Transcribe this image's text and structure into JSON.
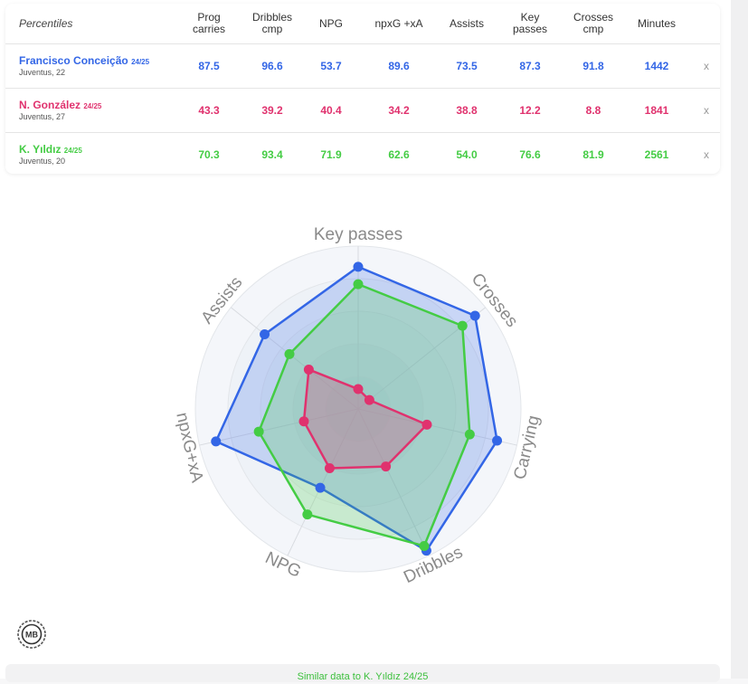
{
  "table": {
    "header_label": "Percentiles",
    "columns": [
      {
        "line1": "Prog",
        "line2": "carries"
      },
      {
        "line1": "Dribbles",
        "line2": "cmp"
      },
      {
        "line1": "NPG",
        "line2": ""
      },
      {
        "line1": "npxG +xA",
        "line2": ""
      },
      {
        "line1": "Assists",
        "line2": ""
      },
      {
        "line1": "Key",
        "line2": "passes"
      },
      {
        "line1": "Crosses",
        "line2": "cmp"
      },
      {
        "line1": "Minutes",
        "line2": ""
      }
    ],
    "remove_label": "x"
  },
  "players": [
    {
      "name": "Francisco Conceição",
      "season": "24/25",
      "club": "Juventus, 22",
      "color": "#3366e6",
      "values": [
        "87.5",
        "96.6",
        "53.7",
        "89.6",
        "73.5",
        "87.3",
        "91.8",
        "1442"
      ]
    },
    {
      "name": "N. González",
      "season": "24/25",
      "club": "Juventus, 27",
      "color": "#e0326e",
      "values": [
        "43.3",
        "39.2",
        "40.4",
        "34.2",
        "38.8",
        "12.2",
        "8.8",
        "1841"
      ]
    },
    {
      "name": "K. Yıldız",
      "season": "24/25",
      "club": "Juventus, 20",
      "color": "#44cc44",
      "values": [
        "70.3",
        "93.4",
        "71.9",
        "62.6",
        "54.0",
        "76.6",
        "81.9",
        "2561"
      ]
    }
  ],
  "chart_data": {
    "type": "radar",
    "axes": [
      "Key passes",
      "Crosses",
      "Carrying",
      "Dribbles",
      "NPG",
      "npxG+xA",
      "Assists"
    ],
    "range": [
      0,
      100
    ],
    "series": [
      {
        "name": "Francisco Conceição",
        "color": "#3366e6",
        "values": [
          87.3,
          91.8,
          87.5,
          96.6,
          53.7,
          89.6,
          73.5
        ]
      },
      {
        "name": "N. González",
        "color": "#e0326e",
        "values": [
          12.2,
          8.8,
          43.3,
          39.2,
          40.4,
          34.2,
          38.8
        ]
      },
      {
        "name": "K. Yıldız",
        "color": "#44cc44",
        "values": [
          76.6,
          81.9,
          70.3,
          93.4,
          71.9,
          62.6,
          54.0
        ]
      }
    ]
  },
  "logo_text": "MB",
  "similar_label": "Similar data to K. Yıldız 24/25"
}
